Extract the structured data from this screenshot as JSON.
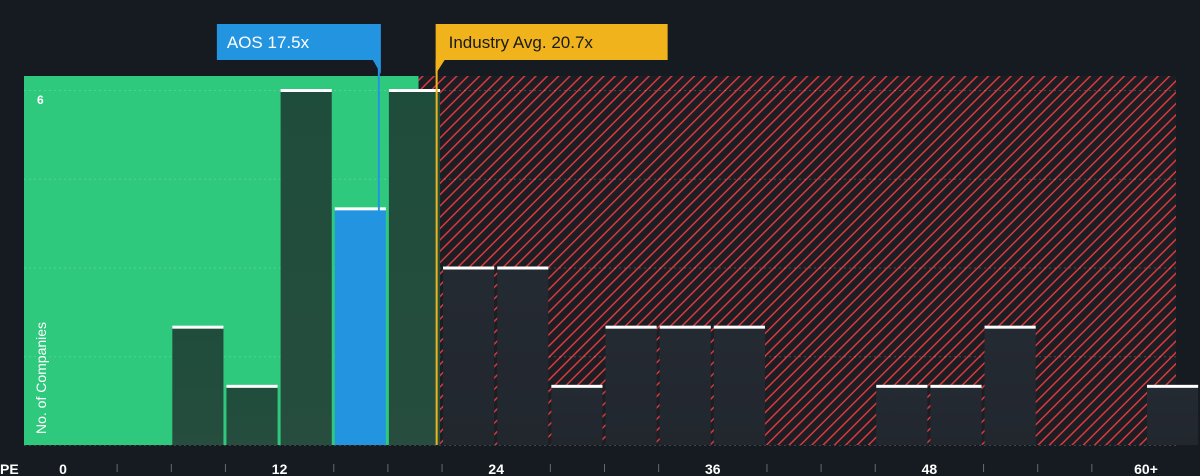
{
  "chart_data": {
    "type": "bar",
    "xlabel": "PE",
    "ylabel": "No. of Companies",
    "x_ticks": [
      "0",
      "12",
      "24",
      "36",
      "48",
      "60+"
    ],
    "y_ticks": [
      "6"
    ],
    "xlim": [
      0,
      62.5
    ],
    "ylim": [
      0,
      6
    ],
    "bin_width": 3,
    "bins": [
      {
        "x_start": 6,
        "count": 2
      },
      {
        "x_start": 9,
        "count": 1
      },
      {
        "x_start": 12,
        "count": 6
      },
      {
        "x_start": 15,
        "count": 4
      },
      {
        "x_start": 18,
        "count": 6
      },
      {
        "x_start": 21,
        "count": 3
      },
      {
        "x_start": 24,
        "count": 3
      },
      {
        "x_start": 27,
        "count": 1
      },
      {
        "x_start": 30,
        "count": 2
      },
      {
        "x_start": 33,
        "count": 2
      },
      {
        "x_start": 36,
        "count": 2
      },
      {
        "x_start": 45,
        "count": 1
      },
      {
        "x_start": 48,
        "count": 1
      },
      {
        "x_start": 51,
        "count": 2
      },
      {
        "x_start": 60,
        "count": 1
      }
    ],
    "highlight_bin_x_start": 15,
    "company": {
      "label": "AOS 17.5x",
      "value": 17.5
    },
    "industry": {
      "label": "Industry Avg. 20.7x",
      "value": 20.7
    },
    "grid": true
  },
  "colors": {
    "background": "#151b20",
    "undervalued_zone": "#2ec97c",
    "overvalued_hatch": "#d9393f",
    "company_callout": "#2394e0",
    "industry_callout": "#f0b31b",
    "bar_dark": "#1d4a39",
    "bar_highlight": "#2394e0"
  }
}
